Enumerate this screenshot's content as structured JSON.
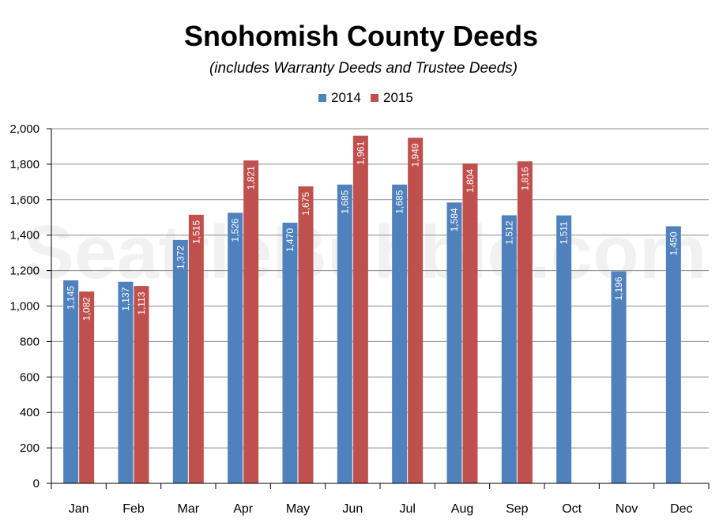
{
  "chart_data": {
    "type": "bar",
    "title": "Snohomish County Deeds",
    "subtitle": "(includes Warranty Deeds and Trustee Deeds)",
    "watermark": "SeattleBubble.com",
    "categories": [
      "Jan",
      "Feb",
      "Mar",
      "Apr",
      "May",
      "Jun",
      "Jul",
      "Aug",
      "Sep",
      "Oct",
      "Nov",
      "Dec"
    ],
    "series": [
      {
        "name": "2014",
        "color": "#4f81bd",
        "values": [
          1145,
          1137,
          1372,
          1526,
          1470,
          1685,
          1685,
          1584,
          1512,
          1511,
          1196,
          1450
        ],
        "labels": [
          "1,145",
          "1,137",
          "1,372",
          "1,526",
          "1,470",
          "1,685",
          "1,685",
          "1,584",
          "1,512",
          "1,511",
          "1,196",
          "1,450"
        ]
      },
      {
        "name": "2015",
        "color": "#c0504d",
        "values": [
          1082,
          1113,
          1515,
          1821,
          1675,
          1961,
          1949,
          1804,
          1816,
          null,
          null,
          null
        ],
        "labels": [
          "1,082",
          "1,113",
          "1,515",
          "1,821",
          "1,675",
          "1,961",
          "1,949",
          "1,804",
          "1,816",
          null,
          null,
          null
        ]
      }
    ],
    "yticks": [
      0,
      200,
      400,
      600,
      800,
      1000,
      1200,
      1400,
      1600,
      1800,
      2000
    ],
    "ytick_labels": [
      "0",
      "200",
      "400",
      "600",
      "800",
      "1,000",
      "1,200",
      "1,400",
      "1,600",
      "1,800",
      "2,000"
    ],
    "ylim": [
      0,
      2000
    ],
    "xlabel": "",
    "ylabel": "",
    "legend": "top-center",
    "grid": "horizontal"
  }
}
